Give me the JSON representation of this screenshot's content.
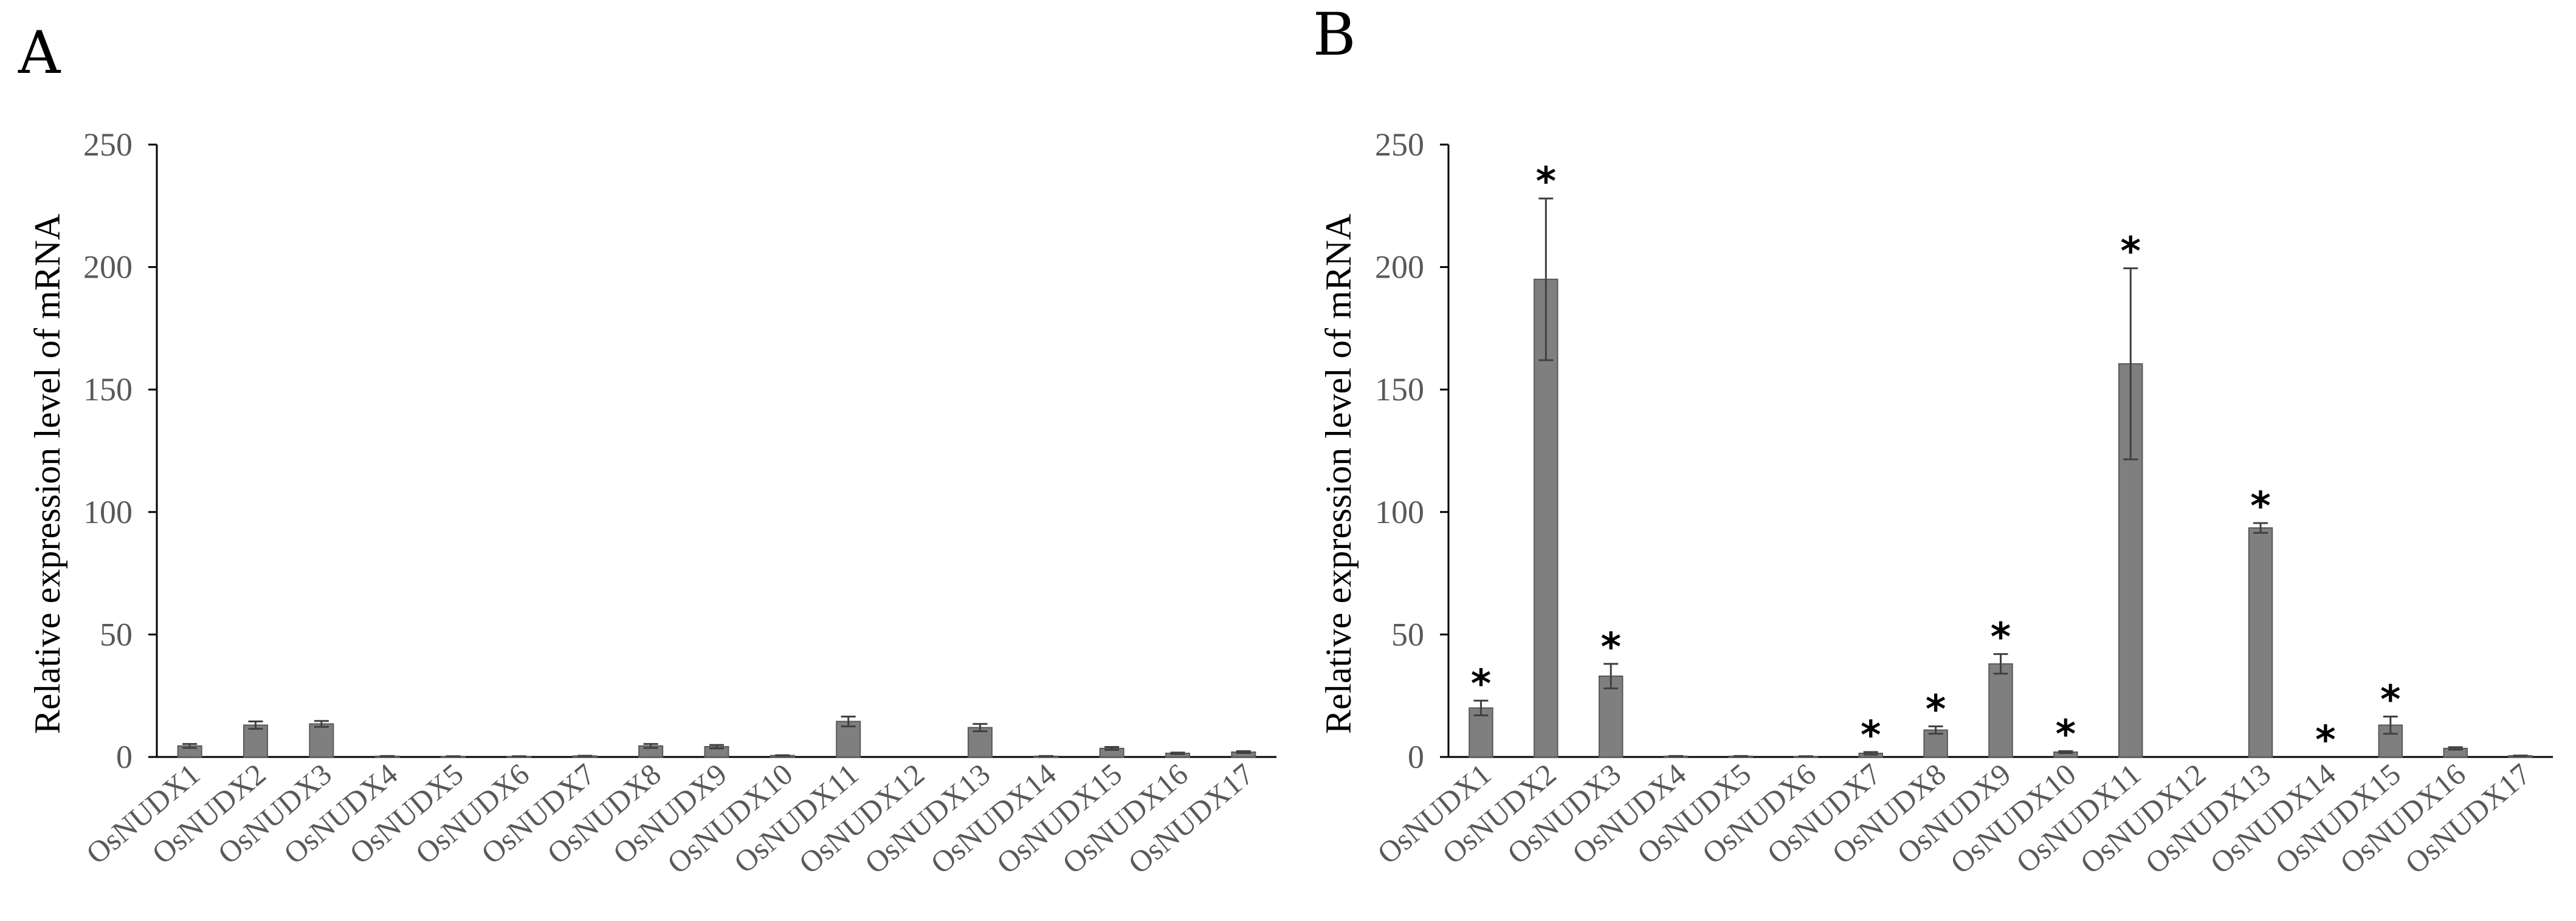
{
  "chart_data": [
    {
      "panel": "A",
      "type": "bar",
      "ylabel": "Relative expression level of mRNA",
      "ylim": [
        0,
        250
      ],
      "yticks": [
        0,
        50,
        100,
        150,
        200,
        250
      ],
      "categories": [
        "OsNUDX1",
        "OsNUDX2",
        "OsNUDX3",
        "OsNUDX4",
        "OsNUDX5",
        "OsNUDX6",
        "OsNUDX7",
        "OsNUDX8",
        "OsNUDX9",
        "OsNUDX10",
        "OsNUDX11",
        "OsNUDX12",
        "OsNUDX13",
        "OsNUDX14",
        "OsNUDX15",
        "OsNUDX16",
        "OsNUDX17"
      ],
      "values": [
        4.5,
        13,
        13.5,
        0.3,
        0.2,
        0.2,
        0.4,
        4.5,
        4.2,
        0.6,
        14.5,
        0,
        12,
        0.3,
        3.5,
        1.5,
        2
      ],
      "errors": [
        0.8,
        1.5,
        1.2,
        0.1,
        0.1,
        0.1,
        0.1,
        0.8,
        0.7,
        0.1,
        2.0,
        0,
        1.5,
        0.1,
        0.6,
        0.3,
        0.4
      ],
      "significant": [
        false,
        false,
        false,
        false,
        false,
        false,
        false,
        false,
        false,
        false,
        false,
        false,
        false,
        false,
        false,
        false,
        false
      ]
    },
    {
      "panel": "B",
      "type": "bar",
      "ylabel": "Relative expression level of mRNA",
      "ylim": [
        0,
        250
      ],
      "yticks": [
        0,
        50,
        100,
        150,
        200,
        250
      ],
      "categories": [
        "OsNUDX1",
        "OsNUDX2",
        "OsNUDX3",
        "OsNUDX4",
        "OsNUDX5",
        "OsNUDX6",
        "OsNUDX7",
        "OsNUDX8",
        "OsNUDX9",
        "OsNUDX10",
        "OsNUDX11",
        "OsNUDX12",
        "OsNUDX13",
        "OsNUDX14",
        "OsNUDX15",
        "OsNUDX16",
        "OsNUDX17"
      ],
      "values": [
        20,
        195,
        33,
        0.3,
        0.3,
        0.2,
        1.5,
        11,
        38,
        2,
        160.5,
        0,
        93.5,
        0,
        13,
        3.5,
        0.5
      ],
      "errors": [
        3,
        33,
        5,
        0.1,
        0.1,
        0.1,
        0.5,
        1.5,
        4,
        0.4,
        39,
        0,
        2,
        0,
        3.5,
        0.5,
        0.1
      ],
      "significant": [
        true,
        true,
        true,
        false,
        false,
        false,
        true,
        true,
        true,
        true,
        true,
        false,
        true,
        true,
        true,
        false,
        false
      ],
      "significance_marker": "*"
    }
  ]
}
